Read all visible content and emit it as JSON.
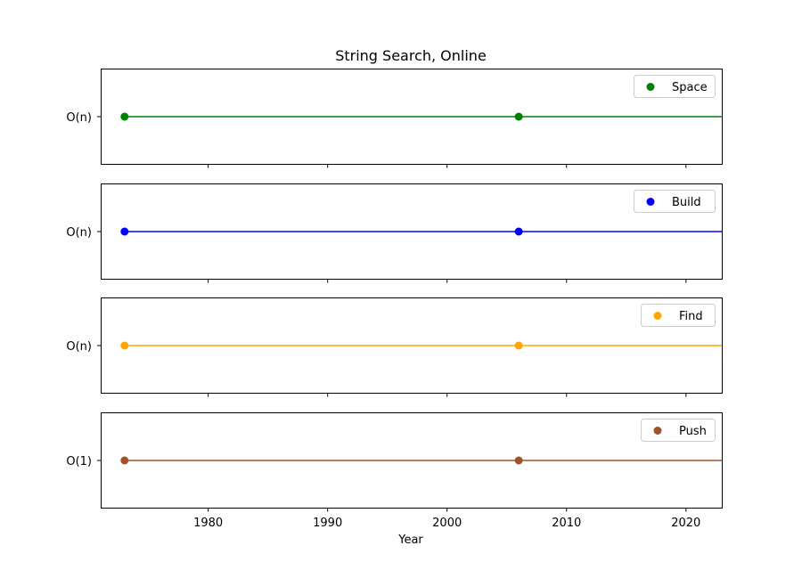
{
  "chart_data": {
    "type": "line",
    "title": "String Search, Online",
    "xlabel": "Year",
    "xlim": [
      1971,
      2023
    ],
    "xticks": [
      1980,
      1990,
      2000,
      2010,
      2020
    ],
    "grid": false,
    "legend_position": "upper right",
    "series": [
      {
        "name": "Space",
        "color": "#008000",
        "category": "O(n)",
        "x": [
          1973,
          2006
        ],
        "line_to_right_edge": true
      },
      {
        "name": "Build",
        "color": "#0000ff",
        "category": "O(n)",
        "x": [
          1973,
          2006
        ],
        "line_to_right_edge": true
      },
      {
        "name": "Find",
        "color": "#ffa500",
        "category": "O(n)",
        "x": [
          1973,
          2006
        ],
        "line_to_right_edge": true
      },
      {
        "name": "Push",
        "color": "#a0522d",
        "category": "O(1)",
        "x": [
          1973,
          2006
        ],
        "line_to_right_edge": true
      }
    ]
  }
}
